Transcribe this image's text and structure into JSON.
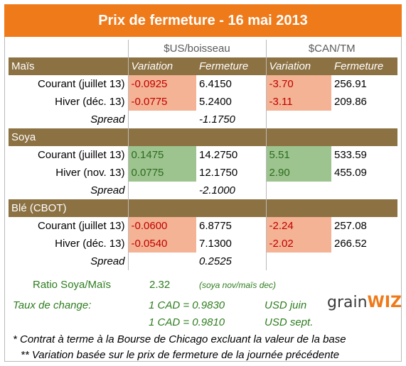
{
  "title": "Prix de fermeture - 16 mai 2013",
  "headers": {
    "usd_group": "$US/boisseau",
    "cad_group": "$CAN/TM",
    "variation": "Variation",
    "fermeture": "Fermeture"
  },
  "sections": [
    {
      "name": "Maïs",
      "rows": [
        {
          "label": "Courant (juillet 13)",
          "usd_var": "-0.0925",
          "usd_close": "6.4150",
          "cad_var": "-3.70",
          "cad_close": "256.91",
          "sign": "neg"
        },
        {
          "label": "Hiver (déc. 13)",
          "usd_var": "-0.0775",
          "usd_close": "5.2400",
          "cad_var": "-3.11",
          "cad_close": "209.86",
          "sign": "neg"
        }
      ],
      "spread_label": "Spread",
      "spread_value": "-1.1750"
    },
    {
      "name": "Soya",
      "rows": [
        {
          "label": "Courant (juillet 13)",
          "usd_var": "0.1475",
          "usd_close": "14.2750",
          "cad_var": "5.51",
          "cad_close": "533.59",
          "sign": "pos"
        },
        {
          "label": "Hiver (nov. 13)",
          "usd_var": "0.0775",
          "usd_close": "12.1750",
          "cad_var": "2.90",
          "cad_close": "455.09",
          "sign": "pos"
        }
      ],
      "spread_label": "Spread",
      "spread_value": "-2.1000"
    },
    {
      "name": "Blé (CBOT)",
      "rows": [
        {
          "label": "Courant (juillet 13)",
          "usd_var": "-0.0600",
          "usd_close": "6.8775",
          "cad_var": "-2.24",
          "cad_close": "257.08",
          "sign": "neg"
        },
        {
          "label": "Hiver (déc. 13)",
          "usd_var": "-0.0540",
          "usd_close": "7.1300",
          "cad_var": "-2.02",
          "cad_close": "266.52",
          "sign": "neg"
        }
      ],
      "spread_label": "Spread",
      "spread_value": "0.2525"
    }
  ],
  "ratio": {
    "label": "Ratio Soya/Maïs",
    "value": "2.32",
    "note": "(soya nov/maïs dec)"
  },
  "exchange": {
    "label": "Taux de change:",
    "rate1": "1 CAD =  0.9830",
    "unit1": "USD juin",
    "rate2": "1 CAD =  0.9810",
    "unit2": "USD sept."
  },
  "footnotes": {
    "note1": "* Contrat à terme à la Bourse de Chicago excluant la valeur de la base",
    "note2": "** Variation basée sur le prix de fermeture de la journée précédente"
  },
  "logo": {
    "part1": "grain",
    "part2": "WIZ"
  },
  "colors": {
    "title_bg": "#ef7a1a",
    "section_bg": "#8c7143",
    "negative_bg": "#f4b394",
    "negative_text": "#c00000",
    "positive_bg": "#9dc48f",
    "positive_text": "#2e6b1f"
  }
}
